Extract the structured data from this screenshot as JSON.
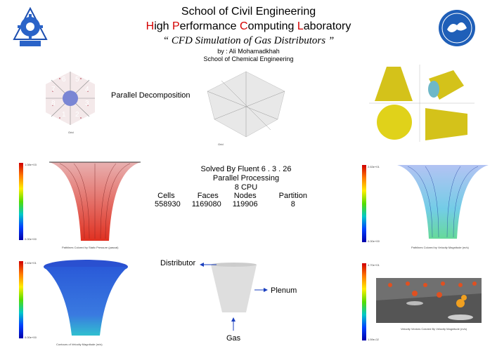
{
  "header": {
    "line1": "School of Civil Engineering",
    "line2_parts": [
      {
        "cap": "H",
        "rest": "igh "
      },
      {
        "cap": "P",
        "rest": "erformance "
      },
      {
        "cap": "C",
        "rest": "omputing "
      },
      {
        "cap": "L",
        "rest": "aboratory"
      }
    ],
    "subtitle": "“ CFD Simulation of Gas Distributors ”",
    "author": "by : Ali Mohamadkhah",
    "school": "School of Chemical Engineering"
  },
  "decomposition": {
    "label": "Parallel Decomposition",
    "partitions": [
      "6",
      "5",
      "7",
      "4",
      "8",
      "3",
      "1",
      "2"
    ],
    "grid_caption_left": "Grid",
    "grid_caption_right": "Grid"
  },
  "solver": {
    "line1": "Solved By Fluent 6 . 3 . 26",
    "line2": "Parallel Processing",
    "line3": "8 CPU",
    "headers": [
      "Cells",
      "Faces",
      "Nodes",
      "Partition"
    ],
    "values": [
      "558930",
      "1169080",
      "119906",
      "8"
    ]
  },
  "plots": {
    "pressure_caption": "Pathlines Colored by Static Pressure (pascal)",
    "pressure_max": "1.08e+03",
    "pressure_min": "0.00e+00",
    "velocity_caption": "Pathlines Colored by Velocity Magnitude (m/s)",
    "velocity_max": "2.63e+01",
    "velocity_min": "0.00e+00",
    "contour_caption": "Contours of Velocity Magnitude (m/s)",
    "contour_max": "2.63e+01",
    "contour_min": "0.00e+00",
    "vectors_caption": "Velocity Vectors Colored By Velocity Magnitude (m/s)",
    "vectors_max": "4.70e+01",
    "vectors_min": "1.59e-02"
  },
  "schematic": {
    "distributor": "Distributor",
    "plenum": "Plenum",
    "gas": "Gas"
  },
  "colors": {
    "accent_red": "#d40000",
    "arrow_blue": "#1a3fbf"
  }
}
